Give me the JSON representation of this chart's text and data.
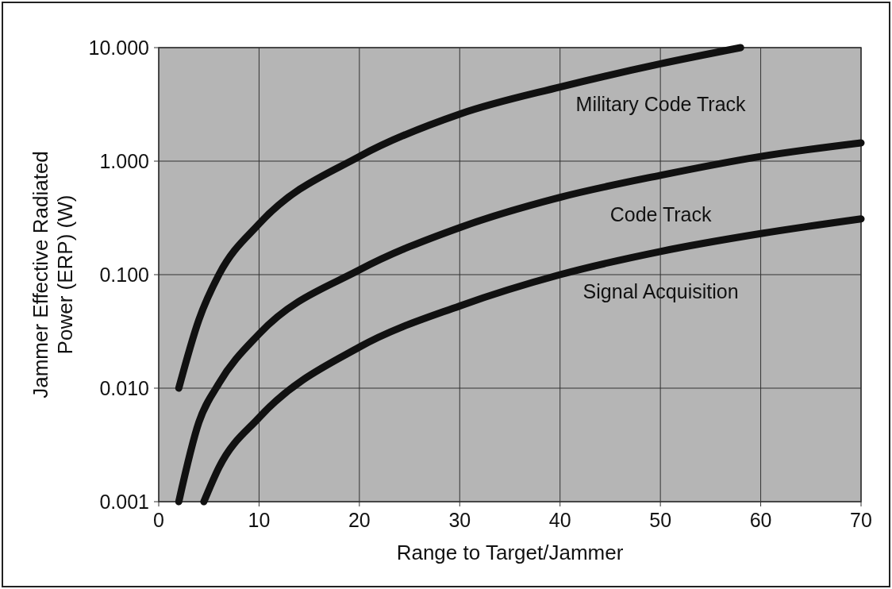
{
  "chart_data": {
    "type": "line",
    "xlabel": "Range to Target/Jammer",
    "ylabel": "Jammer Effective Radiated\nPower (ERP) (W)",
    "log": "y",
    "grid": true,
    "marker": "none",
    "line_style": "solid",
    "xlim": [
      0,
      70
    ],
    "xticks": [
      0,
      10,
      20,
      30,
      40,
      50,
      60,
      70
    ],
    "ylim": [
      0.001,
      10
    ],
    "yticks": [
      {
        "value": 0.001,
        "label": "0.001"
      },
      {
        "value": 0.01,
        "label": "0.010"
      },
      {
        "value": 0.1,
        "label": "0.100"
      },
      {
        "value": 1,
        "label": "1.000"
      },
      {
        "value": 10,
        "label": "10.000"
      }
    ],
    "series": [
      {
        "name": "Military Code Track",
        "color": "#111111",
        "x": [
          2,
          4,
          6,
          10,
          20,
          30,
          40,
          50,
          58
        ],
        "values": [
          0.01,
          0.04,
          0.1,
          0.28,
          1.1,
          2.6,
          4.5,
          7.2,
          10
        ]
      },
      {
        "name": "Code Track",
        "color": "#111111",
        "x": [
          2,
          4,
          6,
          10,
          20,
          30,
          40,
          50,
          60,
          70
        ],
        "values": [
          0.001,
          0.005,
          0.011,
          0.03,
          0.11,
          0.26,
          0.48,
          0.75,
          1.1,
          1.45
        ]
      },
      {
        "name": "Signal Acquisition",
        "color": "#111111",
        "x": [
          4.5,
          6,
          10,
          20,
          30,
          40,
          50,
          60,
          70
        ],
        "values": [
          0.001,
          0.002,
          0.0055,
          0.023,
          0.053,
          0.1,
          0.16,
          0.23,
          0.31
        ]
      }
    ]
  }
}
